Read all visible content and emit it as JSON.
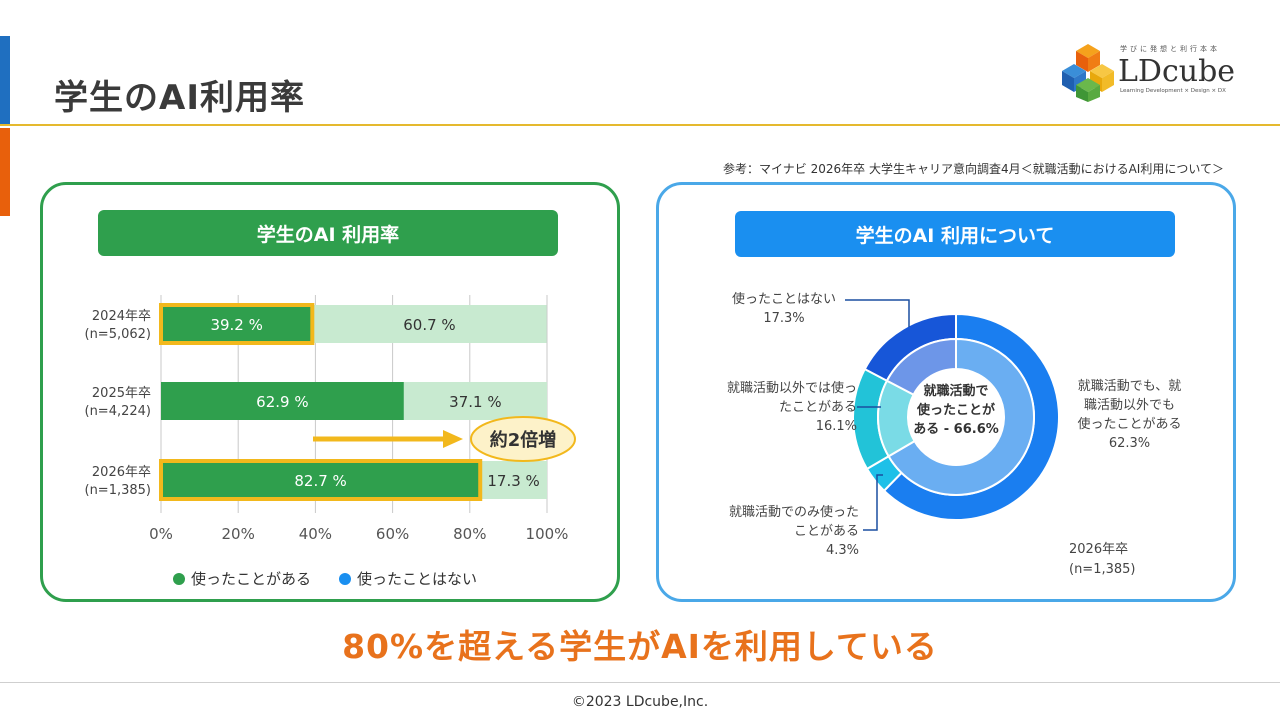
{
  "title": "学生のAI利用率",
  "logo": {
    "tagline": "学びに発想と利行本本",
    "name": "LDcube",
    "sub": "Learning Development × Design × DX"
  },
  "reference": "参考：マイナビ 2026年卒 大学生キャリア意向調査4月＜就職活動におけるAI利用について＞",
  "conclusion": "80%を超える学生がAIを利用している",
  "copyright": "©2023 LDcube,Inc.",
  "chart_data": [
    {
      "type": "bar",
      "title": "学生のAI 利用率",
      "categories": [
        {
          "year": "2024年卒",
          "n": "(n=5,062)"
        },
        {
          "year": "2025年卒",
          "n": "(n=4,224)"
        },
        {
          "year": "2026年卒",
          "n": "(n=1,385)"
        }
      ],
      "series": [
        {
          "name": "使ったことがある",
          "values": [
            39.2,
            62.9,
            82.7
          ],
          "labels": [
            "39.2 %",
            "62.9 %",
            "82.7 %"
          ],
          "color": "#2f9f4d"
        },
        {
          "name": "使ったことはない",
          "values": [
            60.7,
            37.1,
            17.3
          ],
          "labels": [
            "60.7 %",
            "37.1 %",
            "17.3 %"
          ],
          "color": "#c8ead0"
        }
      ],
      "legend_colors": [
        "#2f9f4d",
        "#1a8ff0"
      ],
      "highlight_color": "#f2b81c",
      "highlighted": [
        0,
        2
      ],
      "xlim": [
        0,
        100
      ],
      "xticks": [
        "0%",
        "20%",
        "40%",
        "60%",
        "80%",
        "100%"
      ],
      "annotation": "約2倍増",
      "stacked": true,
      "orientation": "horizontal",
      "legend_position": "bottom"
    },
    {
      "type": "pie",
      "title": "学生のAI 利用について",
      "center_label": [
        "就職活動で",
        "使ったことが",
        "ある - 66.6%"
      ],
      "outer": [
        {
          "label": [
            "就職活動でも、就",
            "職活動以外でも",
            "使ったことがある",
            "62.3%"
          ],
          "value": 62.3,
          "color": "#1a7ef0"
        },
        {
          "label": [
            "就職活動でのみ使った",
            "ことがある",
            "4.3%"
          ],
          "value": 4.3,
          "color": "#1ec0e8"
        },
        {
          "label": [
            "就職活動以外では使っ",
            "たことがある",
            "16.1%"
          ],
          "value": 16.1,
          "color": "#22c3d8"
        },
        {
          "label": [
            "使ったことはない",
            "17.3%"
          ],
          "value": 17.3,
          "color": "#1756d8"
        }
      ],
      "inner": [
        {
          "value": 66.6,
          "color": "#6aaef2"
        },
        {
          "value": 16.1,
          "color": "#7adbe6"
        },
        {
          "value": 17.3,
          "color": "#6d96e8"
        }
      ],
      "note": [
        "2026年卒",
        "(n=1,385)"
      ]
    }
  ]
}
